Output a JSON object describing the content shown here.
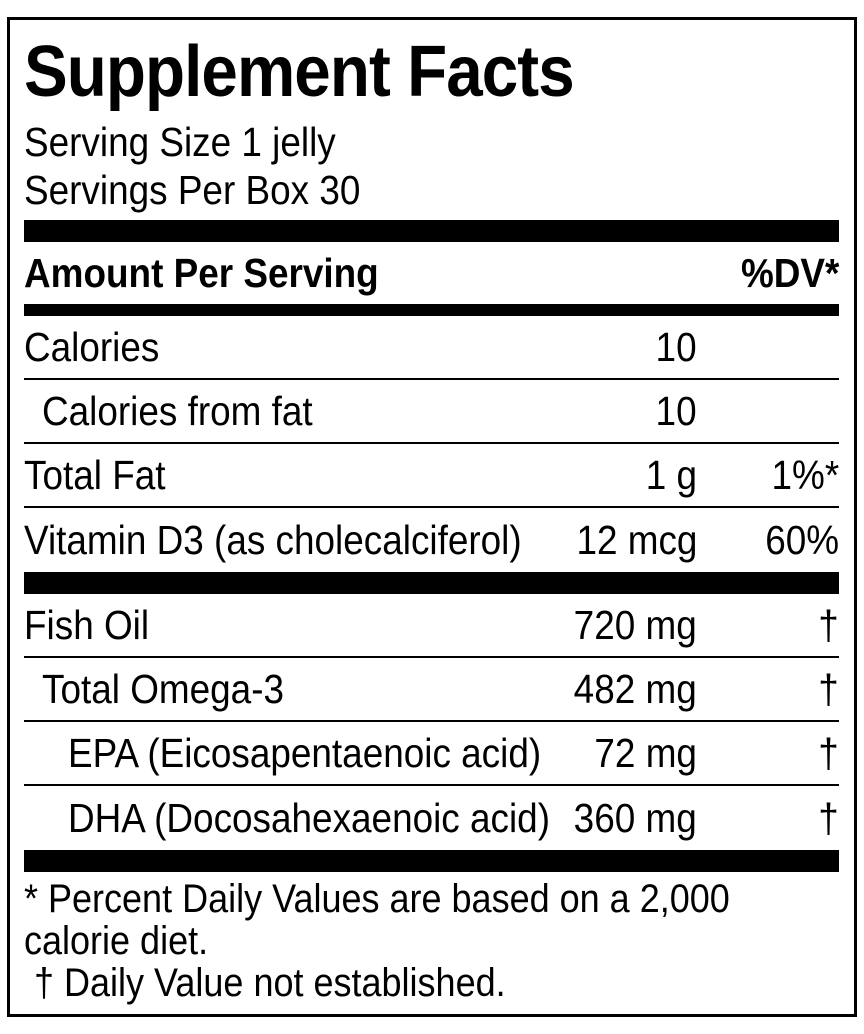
{
  "colors": {
    "ink": "#000000",
    "background": "#ffffff"
  },
  "label": {
    "title": "Supplement Facts",
    "serving_size": "Serving Size 1 jelly",
    "servings_per_box": "Servings Per Box 30",
    "header": {
      "amount_col": "Amount Per Serving",
      "dv_col": "%DV*"
    },
    "rows": [
      {
        "name": "Calories",
        "amount": "10",
        "dv": "",
        "indent": 0
      },
      {
        "name": "Calories from fat",
        "amount": "10",
        "dv": "",
        "indent": 1
      },
      {
        "name": "Total Fat",
        "amount": "1 g",
        "dv": "1%*",
        "indent": 0
      },
      {
        "name": "Vitamin D3 (as cholecalciferol)",
        "amount": "12 mcg",
        "dv": "60%",
        "indent": 0
      },
      {
        "name": "Fish Oil",
        "amount": "720 mg",
        "dv": "†",
        "indent": 0
      },
      {
        "name": "Total Omega-3",
        "amount": "482 mg",
        "dv": "†",
        "indent": 1
      },
      {
        "name": "EPA (Eicosapentaenoic acid)",
        "amount": "72 mg",
        "dv": "†",
        "indent": 2
      },
      {
        "name": "DHA (Docosahexaenoic acid)",
        "amount": "360 mg",
        "dv": "†",
        "indent": 2
      }
    ],
    "footnotes": {
      "dv_line1": "* Percent Daily Values are based on a 2,000",
      "dv_line2": "calorie diet.",
      "dagger_line": "† Daily Value not established."
    }
  }
}
